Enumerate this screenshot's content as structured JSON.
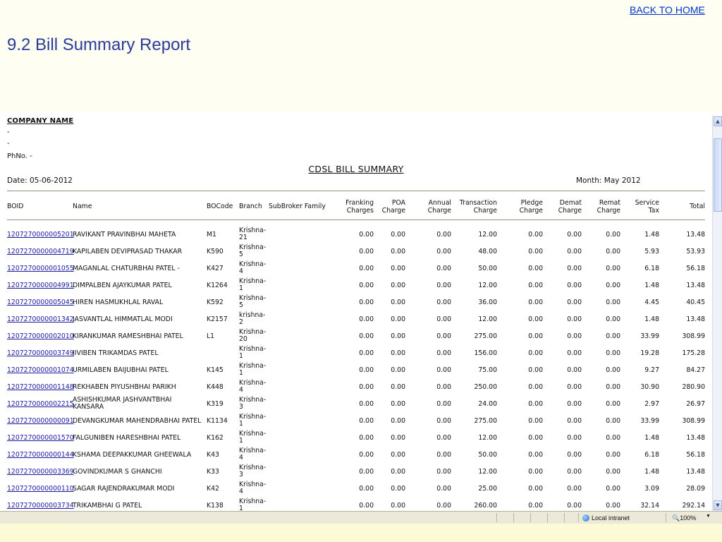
{
  "slide": {
    "back_link": "BACK TO HOME",
    "title": "9.2 Bill Summary Report"
  },
  "report": {
    "company_name": "COMPANY NAME",
    "address_line1": "-",
    "address_line2": "-",
    "phone": "PhNo. -",
    "heading": "CDSL BILL SUMMARY",
    "date": "Date: 05-06-2012",
    "month": "Month: May 2012",
    "columns": {
      "boid": "BOID",
      "name": "Name",
      "bocode": "BOCode",
      "branch": "Branch",
      "subbroker": "SubBroker Family",
      "franking": "Franking\nCharges",
      "poa": "POA\nCharge",
      "annual": "Annual\nCharge",
      "transaction": "Transaction\nCharge",
      "pledge": "Pledge\nCharge",
      "demat": "Demat\nCharge",
      "remat": "Remat\nCharge",
      "service_tax": "Service\nTax",
      "total": "Total"
    },
    "rows": [
      {
        "boid": "1207270000005201",
        "name": "RAVIKANT PRAVINBHAI MAHETA",
        "bocode": "M1",
        "branch": "Krishna-\n21",
        "franking": "0.00",
        "poa": "0.00",
        "annual": "0.00",
        "transaction": "12.00",
        "pledge": "0.00",
        "demat": "0.00",
        "remat": "0.00",
        "service_tax": "1.48",
        "total": "13.48"
      },
      {
        "boid": "1207270000004719",
        "name": "KAPILABEN DEVIPRASAD THAKAR",
        "bocode": "K590",
        "branch": "Krishna-\n5",
        "franking": "0.00",
        "poa": "0.00",
        "annual": "0.00",
        "transaction": "48.00",
        "pledge": "0.00",
        "demat": "0.00",
        "remat": "0.00",
        "service_tax": "5.93",
        "total": "53.93"
      },
      {
        "boid": "1207270000001055",
        "name": "MAGANLAL CHATURBHAI PATEL -",
        "bocode": "K427",
        "branch": "Krishna-\n4",
        "franking": "0.00",
        "poa": "0.00",
        "annual": "0.00",
        "transaction": "50.00",
        "pledge": "0.00",
        "demat": "0.00",
        "remat": "0.00",
        "service_tax": "6.18",
        "total": "56.18"
      },
      {
        "boid": "1207270000004991",
        "name": "DIMPALBEN AJAYKUMAR PATEL",
        "bocode": "K1264",
        "branch": "Krishna-\n1",
        "franking": "0.00",
        "poa": "0.00",
        "annual": "0.00",
        "transaction": "12.00",
        "pledge": "0.00",
        "demat": "0.00",
        "remat": "0.00",
        "service_tax": "1.48",
        "total": "13.48"
      },
      {
        "boid": "1207270000005045",
        "name": "HIREN HASMUKHLAL RAVAL",
        "bocode": "K592",
        "branch": "Krishna-\n5",
        "franking": "0.00",
        "poa": "0.00",
        "annual": "0.00",
        "transaction": "36.00",
        "pledge": "0.00",
        "demat": "0.00",
        "remat": "0.00",
        "service_tax": "4.45",
        "total": "40.45"
      },
      {
        "boid": "1207270000001342",
        "name": "JASVANTLAL HIMMATLAL MODI",
        "bocode": "K2157",
        "branch": "krishna-\n2",
        "franking": "0.00",
        "poa": "0.00",
        "annual": "0.00",
        "transaction": "12.00",
        "pledge": "0.00",
        "demat": "0.00",
        "remat": "0.00",
        "service_tax": "1.48",
        "total": "13.48"
      },
      {
        "boid": "1207270000002010",
        "name": "KIRANKUMAR RAMESHBHAI PATEL",
        "bocode": "L1",
        "branch": "Krishna-\n20",
        "franking": "0.00",
        "poa": "0.00",
        "annual": "0.00",
        "transaction": "275.00",
        "pledge": "0.00",
        "demat": "0.00",
        "remat": "0.00",
        "service_tax": "33.99",
        "total": "308.99"
      },
      {
        "boid": "1207270000003749",
        "name": "JIVIBEN TRIKAMDAS PATEL",
        "bocode": "",
        "branch": "Krishna-\n1",
        "franking": "0.00",
        "poa": "0.00",
        "annual": "0.00",
        "transaction": "156.00",
        "pledge": "0.00",
        "demat": "0.00",
        "remat": "0.00",
        "service_tax": "19.28",
        "total": "175.28"
      },
      {
        "boid": "1207270000001074",
        "name": "URMILABEN BAIJUBHAI PATEL",
        "bocode": "K145",
        "branch": "Krishna-\n1",
        "franking": "0.00",
        "poa": "0.00",
        "annual": "0.00",
        "transaction": "75.00",
        "pledge": "0.00",
        "demat": "0.00",
        "remat": "0.00",
        "service_tax": "9.27",
        "total": "84.27"
      },
      {
        "boid": "1207270000001148",
        "name": "REKHABEN PIYUSHBHAI PARIKH",
        "bocode": "K448",
        "branch": "Krishna-\n4",
        "franking": "0.00",
        "poa": "0.00",
        "annual": "0.00",
        "transaction": "250.00",
        "pledge": "0.00",
        "demat": "0.00",
        "remat": "0.00",
        "service_tax": "30.90",
        "total": "280.90"
      },
      {
        "boid": "1207270000002215",
        "name": "ASHISHKUMAR JASHVANTBHAI\nKANSARA",
        "bocode": "K319",
        "branch": "Krishna-\n3",
        "franking": "0.00",
        "poa": "0.00",
        "annual": "0.00",
        "transaction": "24.00",
        "pledge": "0.00",
        "demat": "0.00",
        "remat": "0.00",
        "service_tax": "2.97",
        "total": "26.97"
      },
      {
        "boid": "1207270000000091",
        "name": "DEVANGKUMAR MAHENDRABHAI PATEL",
        "bocode": "K1134",
        "branch": "Krishna-\n1",
        "franking": "0.00",
        "poa": "0.00",
        "annual": "0.00",
        "transaction": "275.00",
        "pledge": "0.00",
        "demat": "0.00",
        "remat": "0.00",
        "service_tax": "33.99",
        "total": "308.99"
      },
      {
        "boid": "1207270000001570",
        "name": "FALGUNIBEN HARESHBHAI PATEL",
        "bocode": "K162",
        "branch": "Krishna-\n1",
        "franking": "0.00",
        "poa": "0.00",
        "annual": "0.00",
        "transaction": "12.00",
        "pledge": "0.00",
        "demat": "0.00",
        "remat": "0.00",
        "service_tax": "1.48",
        "total": "13.48"
      },
      {
        "boid": "1207270000000144",
        "name": "KSHAMA DEEPAKKUMAR GHEEWALA",
        "bocode": "K43",
        "branch": "Krishna-\n4",
        "franking": "0.00",
        "poa": "0.00",
        "annual": "0.00",
        "transaction": "50.00",
        "pledge": "0.00",
        "demat": "0.00",
        "remat": "0.00",
        "service_tax": "6.18",
        "total": "56.18"
      },
      {
        "boid": "1207270000003369",
        "name": "GOVINDKUMAR S GHANCHI",
        "bocode": "K33",
        "branch": "Krishna-\n3",
        "franking": "0.00",
        "poa": "0.00",
        "annual": "0.00",
        "transaction": "12.00",
        "pledge": "0.00",
        "demat": "0.00",
        "remat": "0.00",
        "service_tax": "1.48",
        "total": "13.48"
      },
      {
        "boid": "1207270000000110",
        "name": "SAGAR RAJENDRAKUMAR MODI",
        "bocode": "K42",
        "branch": "Krishna-\n4",
        "franking": "0.00",
        "poa": "0.00",
        "annual": "0.00",
        "transaction": "25.00",
        "pledge": "0.00",
        "demat": "0.00",
        "remat": "0.00",
        "service_tax": "3.09",
        "total": "28.09"
      },
      {
        "boid": "1207270000003734",
        "name": "TRIKAMBHAI G PATEL",
        "bocode": "K138",
        "branch": "Krishna-\n1",
        "franking": "0.00",
        "poa": "0.00",
        "annual": "0.00",
        "transaction": "260.00",
        "pledge": "0.00",
        "demat": "0.00",
        "remat": "0.00",
        "service_tax": "32.14",
        "total": "292.14"
      }
    ]
  },
  "statusbar": {
    "zone": "Local intranet",
    "zoom": "100%",
    "zone_icon": "globe-icon",
    "zoom_icon": "magnifier-icon"
  },
  "colors": {
    "slide_background": "#fefef2",
    "title": "#2b3b9c",
    "link": "#0033cc",
    "boid_link": "#1a1aa6"
  }
}
